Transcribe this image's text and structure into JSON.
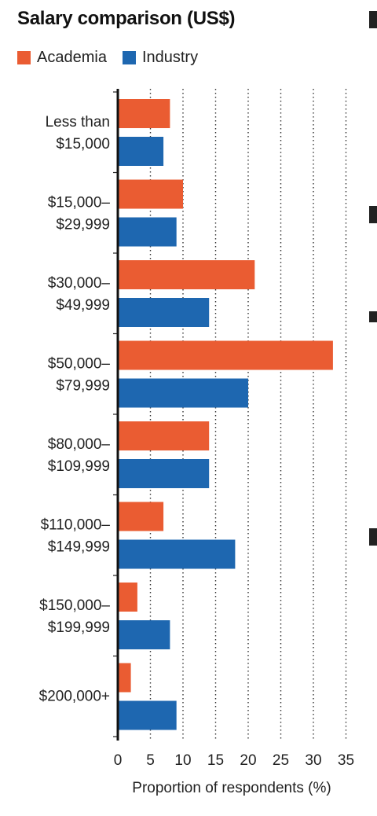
{
  "chart_data": {
    "type": "bar",
    "orientation": "horizontal",
    "title": "Salary comparison (US$)",
    "xlabel": "Proportion of respondents (%)",
    "ylabel": "",
    "xlim": [
      0,
      35
    ],
    "xticks": [
      0,
      5,
      10,
      15,
      20,
      25,
      30,
      35
    ],
    "grid": "vertical dotted",
    "legend_position": "top-left",
    "categories": [
      [
        "Less than",
        "$15,000"
      ],
      [
        "$15,000–",
        "$29,999"
      ],
      [
        "$30,000–",
        "$49,999"
      ],
      [
        "$50,000–",
        "$79,999"
      ],
      [
        "$80,000–",
        "$109,999"
      ],
      [
        "$110,000–",
        "$149,999"
      ],
      [
        "$150,000–",
        "$199,999"
      ],
      [
        "$200,000+"
      ]
    ],
    "series": [
      {
        "name": "Academia",
        "color": "#ea5c32",
        "values": [
          8,
          10,
          21,
          33,
          14,
          7,
          3,
          2
        ]
      },
      {
        "name": "Industry",
        "color": "#1e67b0",
        "values": [
          7,
          9,
          14,
          20,
          14,
          18,
          8,
          9
        ]
      }
    ]
  }
}
